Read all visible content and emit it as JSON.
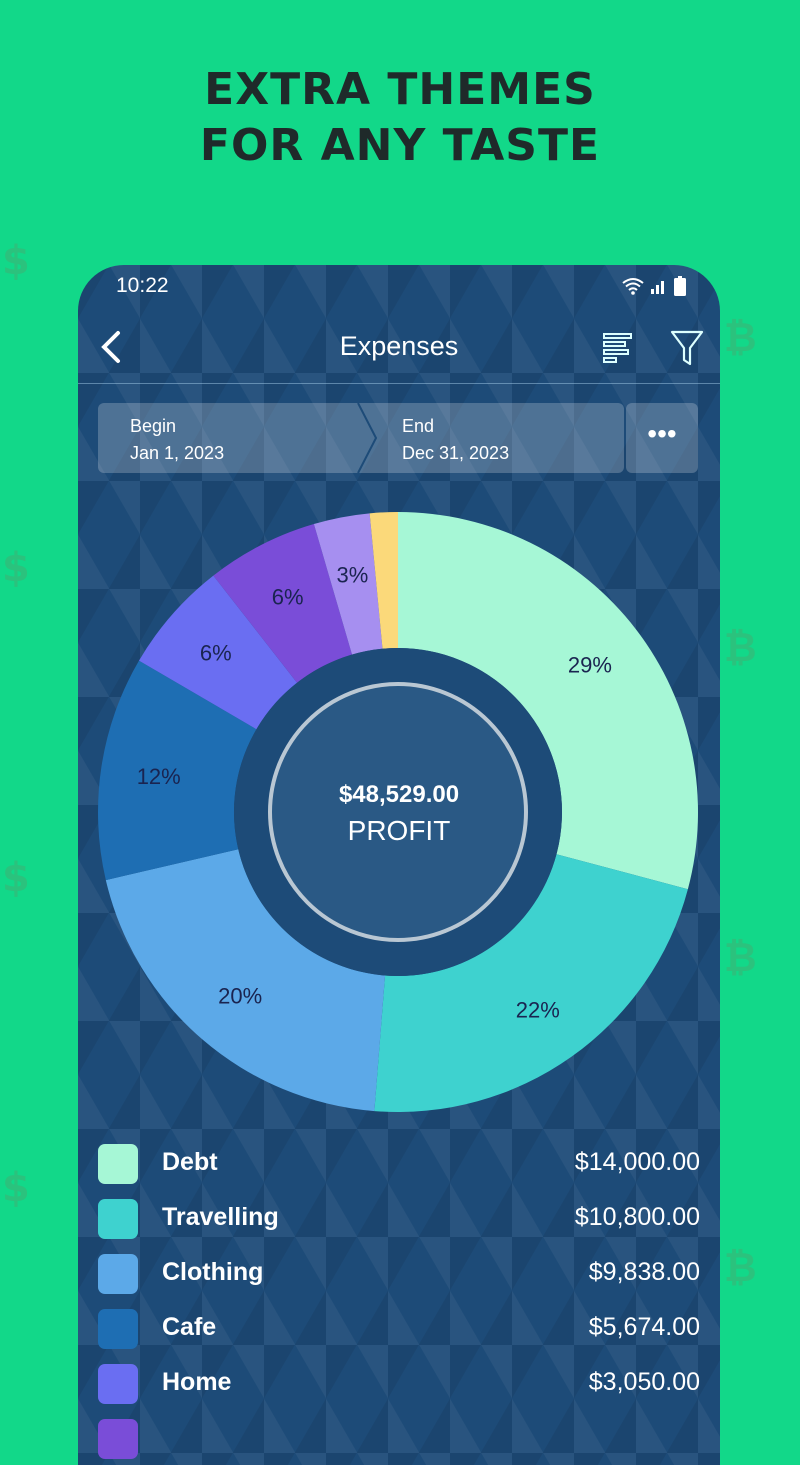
{
  "headline": {
    "line1": "EXTRA THEMES",
    "line2": "FOR ANY TASTE"
  },
  "status_bar": {
    "time": "10:22",
    "icons": [
      "wifi-icon",
      "signal-icon",
      "battery-icon"
    ]
  },
  "app_bar": {
    "title": "Expenses",
    "icons": [
      "back-chevron-icon",
      "sort-bars-icon",
      "filter-funnel-icon"
    ]
  },
  "date_range": {
    "begin_label": "Begin",
    "begin_value": "Jan 1, 2023",
    "end_label": "End",
    "end_value": "Dec 31, 2023",
    "more_label": "•••"
  },
  "center": {
    "amount": "$48,529.00",
    "label": "PROFIT"
  },
  "chart_data": {
    "type": "pie",
    "donut": true,
    "slices": [
      {
        "label": "29%",
        "value": 29,
        "color": "#a6f7d6"
      },
      {
        "label": "22%",
        "value": 22,
        "color": "#3ed2cf"
      },
      {
        "label": "20%",
        "value": 20,
        "color": "#5ca9e8"
      },
      {
        "label": "12%",
        "value": 12,
        "color": "#1e6eb3"
      },
      {
        "label": "6%",
        "value": 6,
        "color": "#6a6ef2"
      },
      {
        "label": "6%",
        "value": 6,
        "color": "#7a4dd8"
      },
      {
        "label": "3%",
        "value": 3,
        "color": "#a68ff0"
      },
      {
        "label": "",
        "value": 1.5,
        "color": "#fbd97a"
      }
    ]
  },
  "legend": [
    {
      "name": "Debt",
      "amount": "$14,000.00",
      "color": "#a6f7d6"
    },
    {
      "name": "Travelling",
      "amount": "$10,800.00",
      "color": "#3ed2cf"
    },
    {
      "name": "Clothing",
      "amount": "$9,838.00",
      "color": "#5ca9e8"
    },
    {
      "name": "Cafe",
      "amount": "$5,674.00",
      "color": "#1e6eb3"
    },
    {
      "name": "Home",
      "amount": "$3,050.00",
      "color": "#6a6ef2"
    },
    {
      "name": "",
      "amount": "",
      "color": "#7a4dd8"
    }
  ]
}
